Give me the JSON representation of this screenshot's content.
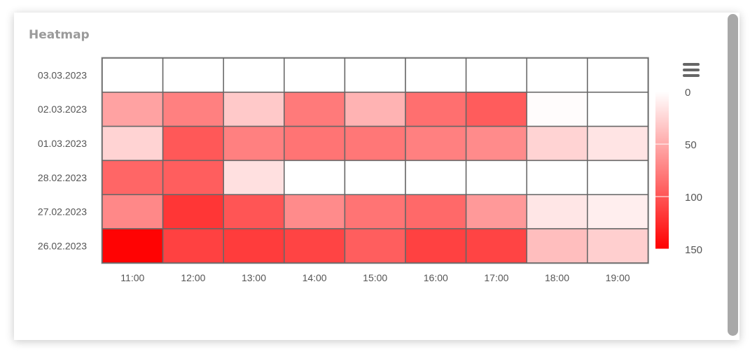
{
  "card": {
    "title": "Heatmap"
  },
  "colors": {
    "min": "#ffffff",
    "max": "#ff0000",
    "cell_border": "#666666",
    "grid_border": "#aaaaaa"
  },
  "icons": {
    "menu": "hamburger-menu-icon"
  },
  "chart_data": {
    "type": "heatmap",
    "title": "Heatmap",
    "x_categories": [
      "11:00",
      "12:00",
      "13:00",
      "14:00",
      "15:00",
      "16:00",
      "17:00",
      "18:00",
      "19:00"
    ],
    "y_categories": [
      "03.03.2023",
      "02.03.2023",
      "01.03.2023",
      "28.02.2023",
      "27.02.2023",
      "26.02.2023"
    ],
    "values": [
      [
        0,
        0,
        0,
        0,
        0,
        0,
        0,
        0,
        0
      ],
      [
        55,
        75,
        32,
        78,
        45,
        85,
        96,
        2,
        0
      ],
      [
        26,
        98,
        75,
        82,
        80,
        75,
        68,
        26,
        16
      ],
      [
        90,
        95,
        18,
        0,
        0,
        0,
        0,
        0,
        0
      ],
      [
        70,
        118,
        100,
        68,
        82,
        88,
        60,
        15,
        10
      ],
      [
        148,
        112,
        115,
        110,
        95,
        112,
        110,
        38,
        28
      ]
    ],
    "color_axis": {
      "min": 0,
      "max": 150,
      "ticks": [
        0,
        50,
        100,
        150
      ],
      "min_color": "#ffffff",
      "max_color": "#ff0000"
    },
    "legend": "right"
  }
}
